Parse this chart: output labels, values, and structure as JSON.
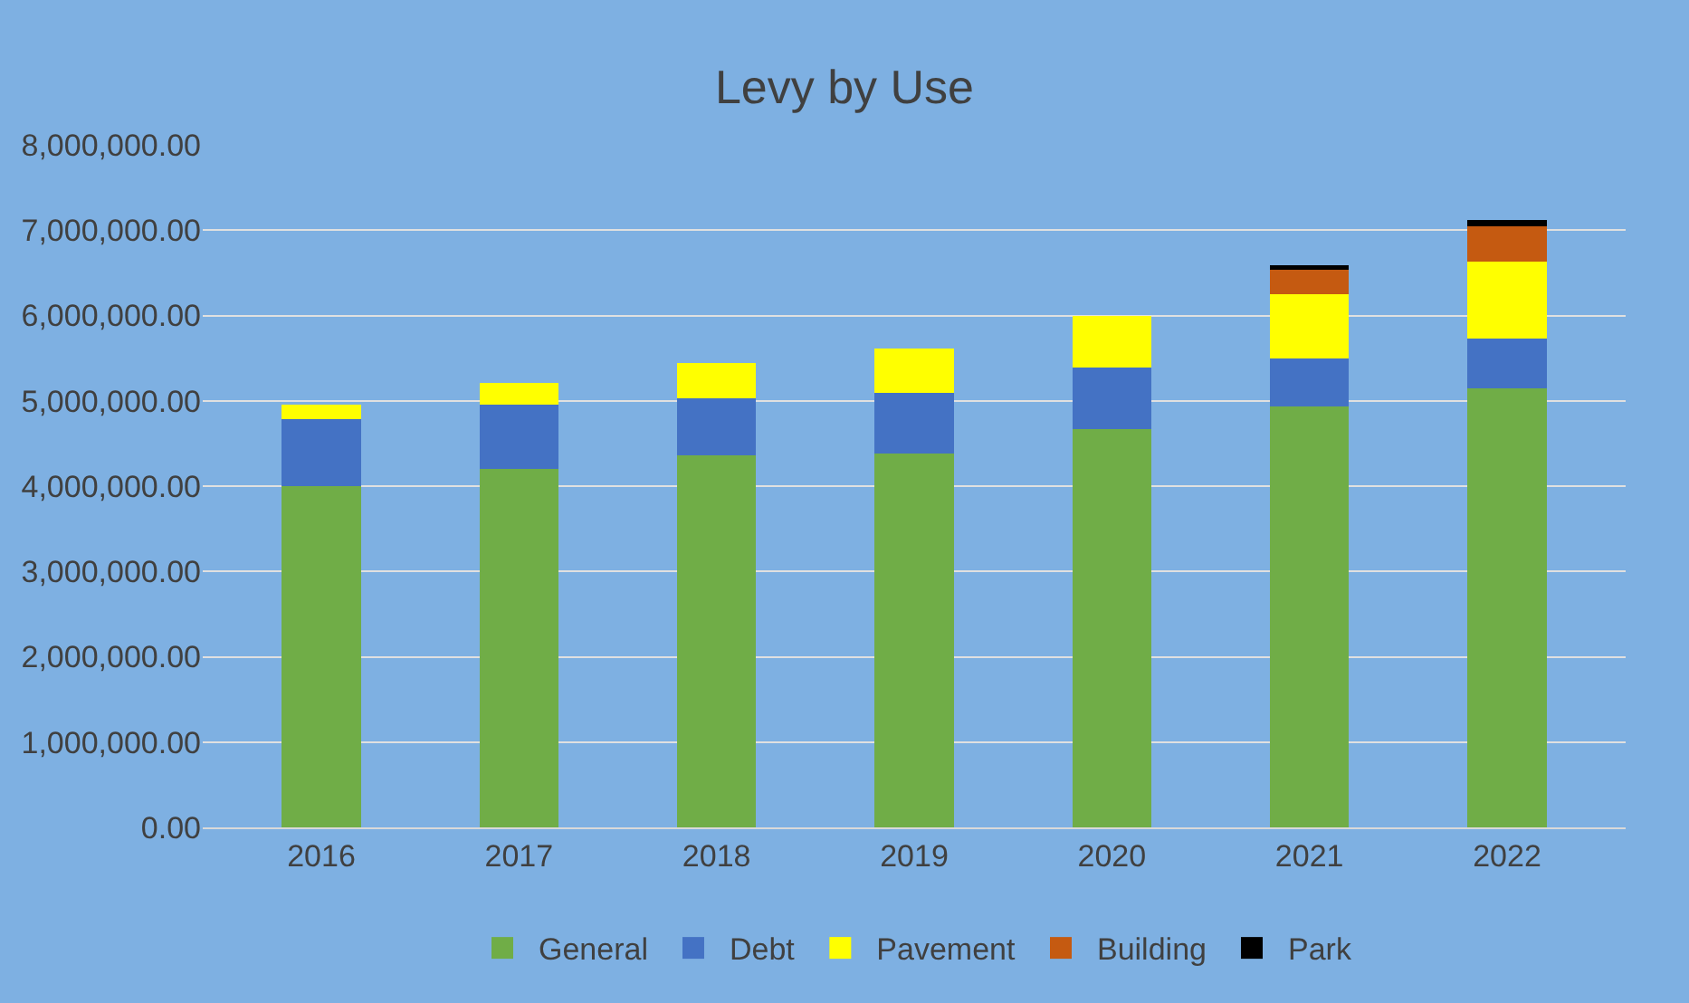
{
  "chart_data": {
    "type": "bar",
    "title": "Levy by Use",
    "stacked": true,
    "grid": "y",
    "legend": "bottom",
    "categories": [
      "2016",
      "2017",
      "2018",
      "2019",
      "2020",
      "2021",
      "2022"
    ],
    "series": [
      {
        "name": "General",
        "color": "#70ad47",
        "values": [
          4000000,
          4200000,
          4360000,
          4380000,
          4670000,
          4930000,
          5150000
        ]
      },
      {
        "name": "Debt",
        "color": "#4472c4",
        "values": [
          780000,
          750000,
          670000,
          710000,
          720000,
          570000,
          580000
        ]
      },
      {
        "name": "Pavement",
        "color": "#ffff00",
        "values": [
          170000,
          260000,
          410000,
          520000,
          610000,
          750000,
          900000
        ]
      },
      {
        "name": "Building",
        "color": "#c55a11",
        "values": [
          null,
          null,
          null,
          null,
          null,
          290000,
          410000
        ]
      },
      {
        "name": "Park",
        "color": "#000000",
        "values": [
          null,
          null,
          null,
          null,
          null,
          50000,
          80000
        ]
      }
    ],
    "ylim": [
      0,
      8000000
    ],
    "yticks": [
      {
        "value": 0,
        "label": "0.00"
      },
      {
        "value": 1000000,
        "label": "1,000,000.00"
      },
      {
        "value": 2000000,
        "label": "2,000,000.00"
      },
      {
        "value": 3000000,
        "label": "3,000,000.00"
      },
      {
        "value": 4000000,
        "label": "4,000,000.00"
      },
      {
        "value": 5000000,
        "label": "5,000,000.00"
      },
      {
        "value": 6000000,
        "label": "6,000,000.00"
      },
      {
        "value": 7000000,
        "label": "7,000,000.00"
      },
      {
        "value": 8000000,
        "label": "8,000,000.00"
      }
    ]
  }
}
